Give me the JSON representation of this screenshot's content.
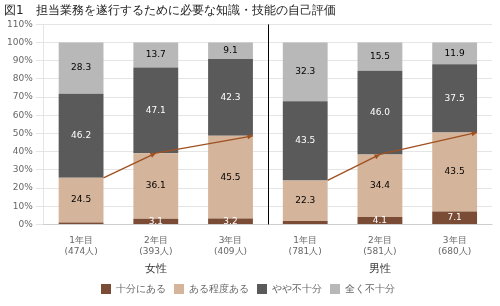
{
  "chart_data": {
    "type": "bar",
    "stacked": true,
    "title": "図1　担当業務を遂行するために必要な知識・技能の自己評価",
    "categories": [
      "1年目\n(474人)",
      "2年目\n(393人)",
      "3年目\n(409人)",
      "1年目\n(781人)",
      "2年目\n(581人)",
      "3年目\n(680人)"
    ],
    "group_labels": [
      "女性",
      "男性"
    ],
    "series": [
      {
        "name": "十分にある",
        "color": "#7b4c35",
        "values": [
          1.1,
          3.1,
          3.2,
          1.9,
          4.1,
          7.1
        ],
        "value_labels": [
          null,
          "3.1",
          "3.2",
          null,
          "4.1",
          "7.1"
        ]
      },
      {
        "name": "ある程度ある",
        "color": "#d4b49a",
        "values": [
          24.5,
          36.1,
          45.5,
          22.3,
          34.4,
          43.5
        ]
      },
      {
        "name": "やや不十分",
        "color": "#5a5a5a",
        "values": [
          46.2,
          47.1,
          42.3,
          43.5,
          46.0,
          37.5
        ],
        "value_labels": [
          "46.2",
          "47.1",
          "42.3",
          "43.5",
          "46.0",
          "37.5"
        ]
      },
      {
        "name": "全く不十分",
        "color": "#b8b8b8",
        "values": [
          28.3,
          13.7,
          9.1,
          32.3,
          15.5,
          11.9
        ]
      }
    ],
    "ylim": [
      0,
      110
    ],
    "yticks": [
      {
        "value": 0,
        "label": "0%"
      },
      {
        "value": 10,
        "label": "10%"
      },
      {
        "value": 20,
        "label": "20%"
      },
      {
        "value": 30,
        "label": "30%"
      },
      {
        "value": 40,
        "label": "40%"
      },
      {
        "value": 50,
        "label": "50%"
      },
      {
        "value": 60,
        "label": "60%"
      },
      {
        "value": 70,
        "label": "70%"
      },
      {
        "value": 80,
        "label": "80%"
      },
      {
        "value": 90,
        "label": "90%"
      },
      {
        "value": 100,
        "label": "100%"
      },
      {
        "value": 110,
        "label": "110%"
      }
    ],
    "grid": true,
    "legend": "bottom",
    "data_labels": true
  }
}
